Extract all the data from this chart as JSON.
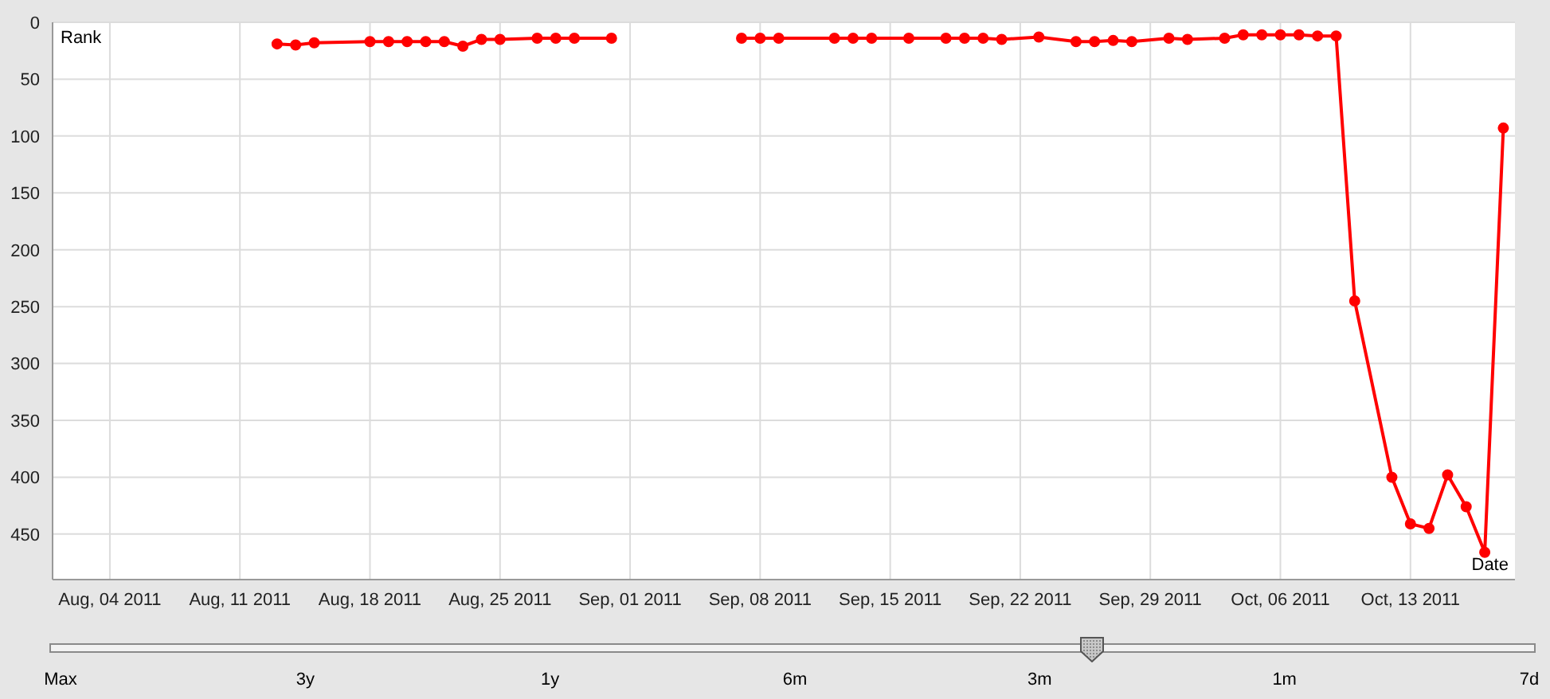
{
  "chart_data": {
    "type": "line",
    "xlabel": "Date",
    "ylabel": "Rank",
    "x": [
      "2011-08-13",
      "2011-08-14",
      "2011-08-15",
      "2011-08-18",
      "2011-08-19",
      "2011-08-20",
      "2011-08-21",
      "2011-08-22",
      "2011-08-23",
      "2011-08-24",
      "2011-08-25",
      "2011-08-27",
      "2011-08-28",
      "2011-08-29",
      "2011-08-31",
      "2011-09-01",
      "2011-09-07",
      "2011-09-08",
      "2011-09-09",
      "2011-09-12",
      "2011-09-13",
      "2011-09-14",
      "2011-09-16",
      "2011-09-18",
      "2011-09-19",
      "2011-09-20",
      "2011-09-21",
      "2011-09-23",
      "2011-09-25",
      "2011-09-26",
      "2011-09-27",
      "2011-09-28",
      "2011-09-30",
      "2011-10-01",
      "2011-10-03",
      "2011-10-04",
      "2011-10-05",
      "2011-10-06",
      "2011-10-07",
      "2011-10-08",
      "2011-10-09",
      "2011-10-10",
      "2011-10-12",
      "2011-10-13",
      "2011-10-14",
      "2011-10-15",
      "2011-10-16",
      "2011-10-17",
      "2011-10-18"
    ],
    "series": [
      {
        "color": "#ff0000",
        "values": [
          19,
          20,
          18,
          17,
          17,
          17,
          17,
          17,
          21,
          15,
          15,
          14,
          14,
          14,
          14,
          null,
          14,
          14,
          14,
          14,
          14,
          14,
          14,
          14,
          14,
          14,
          15,
          13,
          17,
          17,
          16,
          17,
          14,
          15,
          14,
          11,
          11,
          11,
          11,
          12,
          12,
          245,
          400,
          441,
          445,
          398,
          426,
          466,
          93
        ]
      }
    ],
    "xlim": [
      "2011-07-31T22:00",
      "2011-10-18T15:00"
    ],
    "xticks": [
      {
        "value": "2011-08-04",
        "label": "Aug, 04 2011"
      },
      {
        "value": "2011-08-11",
        "label": "Aug, 11 2011"
      },
      {
        "value": "2011-08-18",
        "label": "Aug, 18 2011"
      },
      {
        "value": "2011-08-25",
        "label": "Aug, 25 2011"
      },
      {
        "value": "2011-09-01",
        "label": "Sep, 01 2011"
      },
      {
        "value": "2011-09-08",
        "label": "Sep, 08 2011"
      },
      {
        "value": "2011-09-15",
        "label": "Sep, 15 2011"
      },
      {
        "value": "2011-09-22",
        "label": "Sep, 22 2011"
      },
      {
        "value": "2011-09-29",
        "label": "Sep, 29 2011"
      },
      {
        "value": "2011-10-06",
        "label": "Oct, 06 2011"
      },
      {
        "value": "2011-10-13",
        "label": "Oct, 13 2011"
      }
    ],
    "ylim": [
      490,
      0
    ],
    "yticks": [
      0,
      50,
      100,
      150,
      200,
      250,
      300,
      350,
      400,
      450
    ],
    "grid": true,
    "marker": "circle",
    "line_style": "solid",
    "annotations": [
      "Max",
      "3y",
      "1y",
      "6m",
      "3m",
      "1m",
      "7d"
    ]
  }
}
